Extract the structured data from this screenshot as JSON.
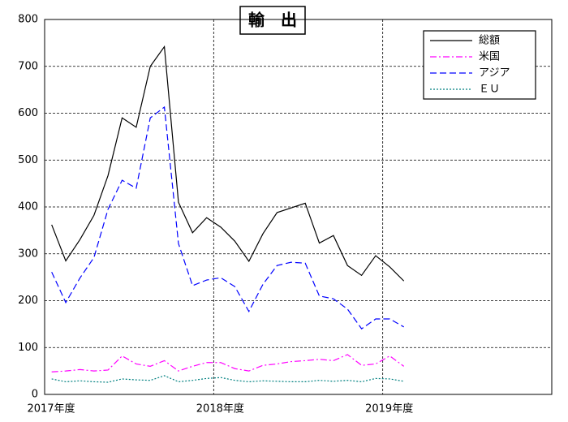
{
  "chart_data": {
    "type": "line",
    "title": "輸　出",
    "x": [
      0.5,
      1.5,
      2.5,
      3.5,
      4.5,
      5.5,
      6.5,
      7.5,
      8.5,
      9.5,
      10.5,
      11.5,
      12.5,
      13.5,
      14.5,
      15.5,
      16.5,
      17.5,
      18.5,
      19.5,
      20.5,
      21.5,
      22.5,
      23.5,
      24.5,
      25.5
    ],
    "series": [
      {
        "name": "総額",
        "color": "#000000",
        "dash": "solid",
        "values": [
          362,
          285,
          330,
          382,
          467,
          590,
          570,
          700,
          742,
          410,
          345,
          377,
          357,
          327,
          284,
          343,
          388,
          398,
          408,
          323,
          339,
          275,
          254,
          296,
          272,
          242
        ]
      },
      {
        "name": "米国",
        "color": "#ff00ff",
        "dash": "dashdot",
        "values": [
          48,
          50,
          53,
          50,
          52,
          82,
          65,
          60,
          72,
          50,
          60,
          68,
          68,
          55,
          50,
          62,
          65,
          70,
          72,
          75,
          72,
          85,
          62,
          65,
          82,
          60
        ]
      },
      {
        "name": "アジア",
        "color": "#0000ff",
        "dash": "dashed",
        "values": [
          261,
          196,
          248,
          292,
          395,
          457,
          440,
          590,
          613,
          322,
          232,
          244,
          249,
          230,
          177,
          235,
          275,
          282,
          280,
          210,
          204,
          182,
          140,
          161,
          161,
          144
        ]
      },
      {
        "name": "ＥＵ",
        "color": "#008080",
        "dash": "dotted",
        "values": [
          33,
          27,
          29,
          27,
          26,
          33,
          31,
          30,
          40,
          27,
          30,
          34,
          36,
          30,
          27,
          29,
          28,
          27,
          27,
          30,
          28,
          30,
          27,
          34,
          33,
          28
        ]
      }
    ],
    "xlim": [
      0,
      36
    ],
    "xticks": [
      {
        "value": 0,
        "label": "2017年度"
      },
      {
        "value": 12,
        "label": "2018年度"
      },
      {
        "value": 24,
        "label": "2019年度"
      }
    ],
    "ylim": [
      0,
      800
    ],
    "yticks": [
      0,
      100,
      200,
      300,
      400,
      500,
      600,
      700,
      800
    ],
    "grid": true,
    "legend": "top-right"
  }
}
